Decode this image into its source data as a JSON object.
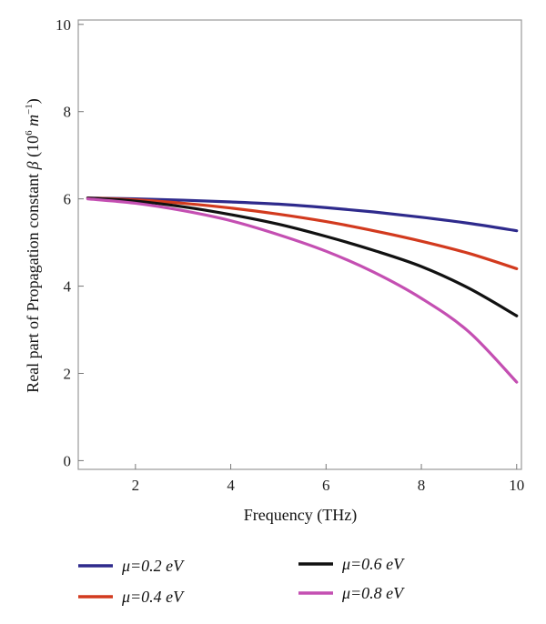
{
  "chart_data": {
    "type": "line",
    "xlabel": "Frequency (THz)",
    "ylabel": {
      "prefix": "Real part of Propagation constant ",
      "symbol": "β",
      "unit_open": " (10",
      "unit_exp": "6",
      "unit_m": " m",
      "unit_exp2": "−1",
      "unit_close": ")"
    },
    "xlim": [
      0.8,
      10.1
    ],
    "ylim": [
      -0.2,
      10.1
    ],
    "xticks": [
      2,
      4,
      6,
      8,
      10
    ],
    "yticks": [
      0,
      2,
      4,
      6,
      8,
      10
    ],
    "grid": false,
    "legend_placement": "bottom",
    "x": [
      1,
      2,
      3,
      4,
      5,
      6,
      7,
      8,
      9,
      10
    ],
    "series": [
      {
        "name": "μ=0.2 eV",
        "color": "#2e2a8c",
        "values": [
          6.02,
          6.0,
          5.97,
          5.93,
          5.88,
          5.8,
          5.7,
          5.58,
          5.44,
          5.27
        ]
      },
      {
        "name": "μ=0.4 eV",
        "color": "#d23a1e",
        "values": [
          6.02,
          5.98,
          5.9,
          5.79,
          5.65,
          5.48,
          5.27,
          5.03,
          4.75,
          4.4
        ]
      },
      {
        "name": "μ=0.6 eV",
        "color": "#111111",
        "values": [
          6.02,
          5.95,
          5.82,
          5.64,
          5.42,
          5.14,
          4.82,
          4.45,
          3.95,
          3.32
        ]
      },
      {
        "name": "μ=0.8 eV",
        "color": "#c44fb2",
        "values": [
          6.0,
          5.9,
          5.73,
          5.5,
          5.18,
          4.8,
          4.32,
          3.72,
          2.95,
          1.8
        ]
      }
    ]
  }
}
